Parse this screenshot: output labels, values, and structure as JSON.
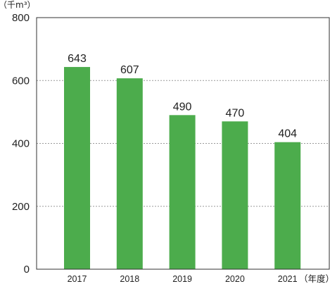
{
  "chart_data": {
    "type": "bar",
    "categories": [
      "2017",
      "2018",
      "2019",
      "2020",
      "2021"
    ],
    "values": [
      643,
      607,
      490,
      470,
      404
    ],
    "title": "",
    "ylabel": "（千m³）",
    "xlabel": "（年度）",
    "ylim": [
      0,
      800
    ],
    "yticks": [
      0,
      200,
      400,
      600,
      800
    ],
    "grid": true,
    "grid_style": "dotted",
    "bar_color": "#4cac4c"
  }
}
